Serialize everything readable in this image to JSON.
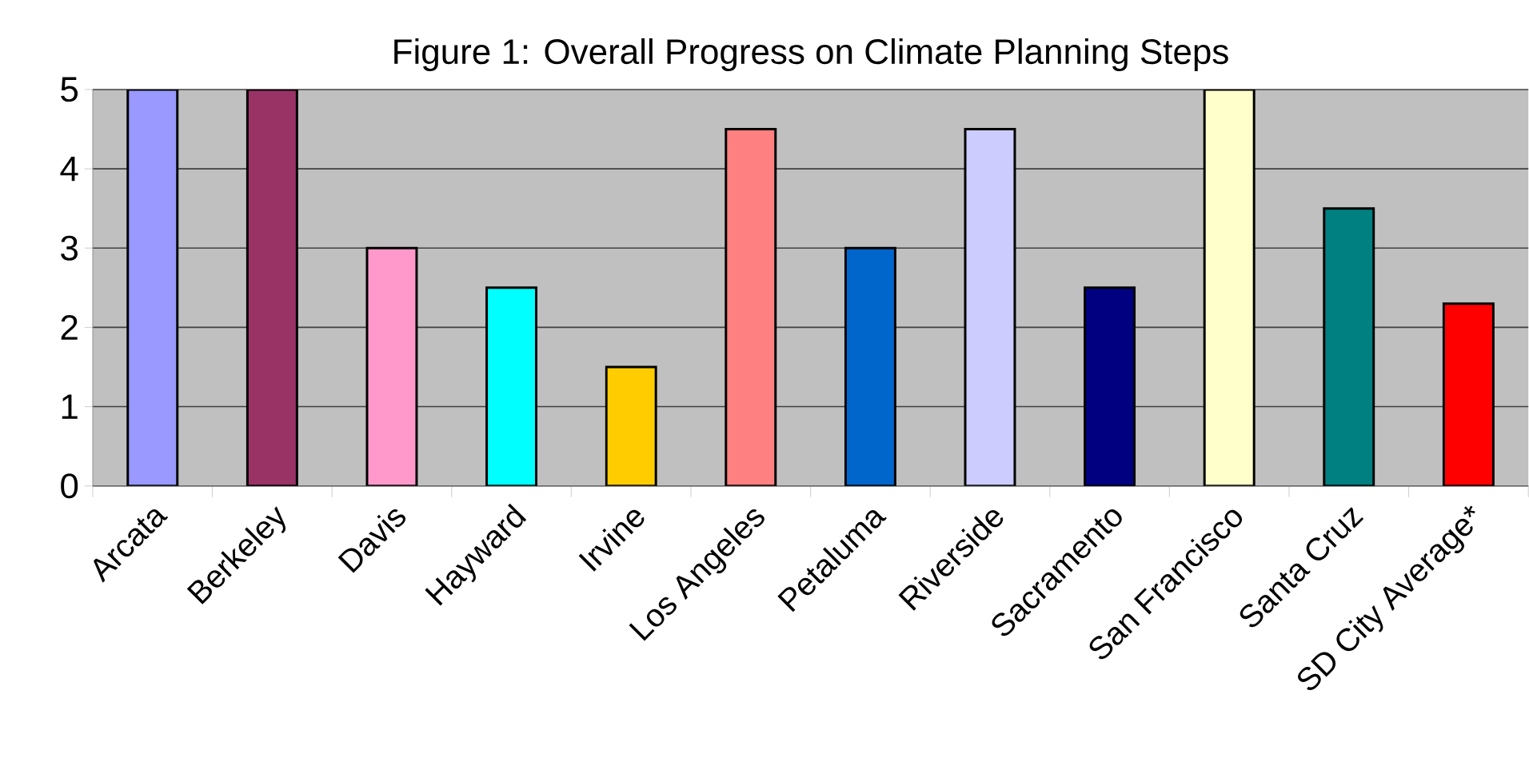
{
  "chart_data": {
    "type": "bar",
    "title": "Figure 1: Overall Progress on Climate Planning Steps",
    "categories": [
      "Arcata",
      "Berkeley",
      "Davis",
      "Hayward",
      "Irvine",
      "Los Angeles",
      "Petaluma",
      "Riverside",
      "Sacramento",
      "San Francisco",
      "Santa Cruz",
      "SD City Average*"
    ],
    "values": [
      5,
      5,
      3,
      2.5,
      1.5,
      4.5,
      3,
      4.5,
      2.5,
      5,
      3.5,
      2.3
    ],
    "colors": [
      "#9999ff",
      "#993366",
      "#ff99cc",
      "#00ffff",
      "#ffcc00",
      "#ff8080",
      "#0066cc",
      "#ccccff",
      "#000080",
      "#ffffcc",
      "#008080",
      "#ff0000"
    ],
    "ylim": [
      0,
      5
    ],
    "yticks": [
      0,
      1,
      2,
      3,
      4,
      5
    ],
    "grid": "y"
  }
}
